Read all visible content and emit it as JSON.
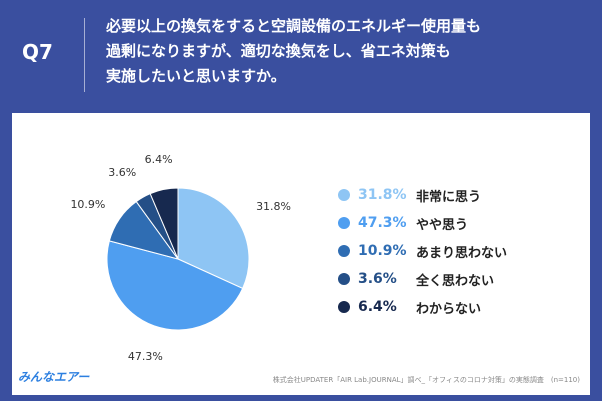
{
  "header": {
    "qnum": "Q7",
    "question_lines": [
      "必要以上の換気をすると空調設備のエネルギー使用量も",
      "過剰になりますが、適切な換気をし、省エネ対策も",
      "実施したいと思いますか。"
    ]
  },
  "colors": {
    "background": "#3a4f9f",
    "card": "#ffffff"
  },
  "chart_data": {
    "type": "pie",
    "title": "",
    "slices": [
      {
        "label": "非常に思う",
        "value": 31.8,
        "display": "31.8%",
        "color": "#8ec5f4",
        "text_color": "#8ec5f4"
      },
      {
        "label": "やや思う",
        "value": 47.3,
        "display": "47.3%",
        "color": "#4f9ef0",
        "text_color": "#4f9ef0"
      },
      {
        "label": "あまり思わない",
        "value": 10.9,
        "display": "10.9%",
        "color": "#2f6db3",
        "text_color": "#2f6db3"
      },
      {
        "label": "全く思わない",
        "value": 3.6,
        "display": "3.6%",
        "color": "#244f87",
        "text_color": "#244f87"
      },
      {
        "label": "わからない",
        "value": 6.4,
        "display": "6.4%",
        "color": "#17294f",
        "text_color": "#17294f"
      }
    ],
    "start_angle": "12 o'clock",
    "direction": "clockwise",
    "legend_placement": "right"
  },
  "footer": {
    "logo": "みんなエアー",
    "source": "株式会社UPDATER「AIR Lab.JOURNAL」調べ_「オフィスのコロナ対策」の実態調査　(n=110)"
  }
}
